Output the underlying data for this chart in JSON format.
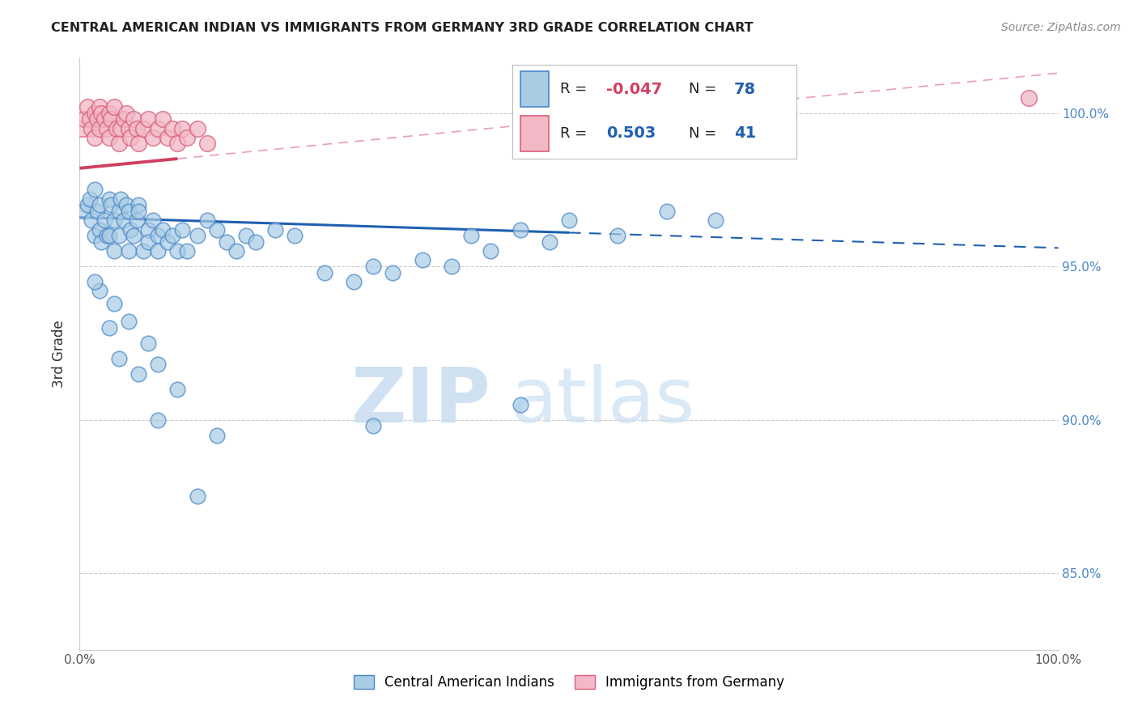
{
  "title": "CENTRAL AMERICAN INDIAN VS IMMIGRANTS FROM GERMANY 3RD GRADE CORRELATION CHART",
  "source": "Source: ZipAtlas.com",
  "ylabel": "3rd Grade",
  "figsize": [
    14.06,
    8.92
  ],
  "dpi": 100,
  "xlim": [
    0.0,
    100.0
  ],
  "ylim": [
    82.5,
    101.8
  ],
  "blue_color": "#a8cce4",
  "pink_color": "#f2b8c6",
  "blue_edge_color": "#4a86c8",
  "pink_edge_color": "#d9607a",
  "blue_line_color": "#2060b0",
  "pink_line_color": "#d04060",
  "R_blue": -0.047,
  "N_blue": 78,
  "R_pink": 0.503,
  "N_pink": 41,
  "watermark_zip": "ZIP",
  "watermark_atlas": "atlas",
  "background_color": "#ffffff",
  "grid_color": "#cccccc",
  "blue_trend_start": 0.0,
  "blue_trend_solid_end": 50.0,
  "blue_trend_end": 100.0,
  "blue_trend_y0": 96.6,
  "blue_trend_y100": 95.6,
  "pink_trend_start": 0.0,
  "pink_trend_solid_end": 10.0,
  "pink_trend_end": 100.0,
  "pink_trend_y0": 98.2,
  "pink_trend_y100": 101.3,
  "legend_R_color": "#d04060",
  "legend_N_color": "#2060b0",
  "legend_label_color": "#222222"
}
